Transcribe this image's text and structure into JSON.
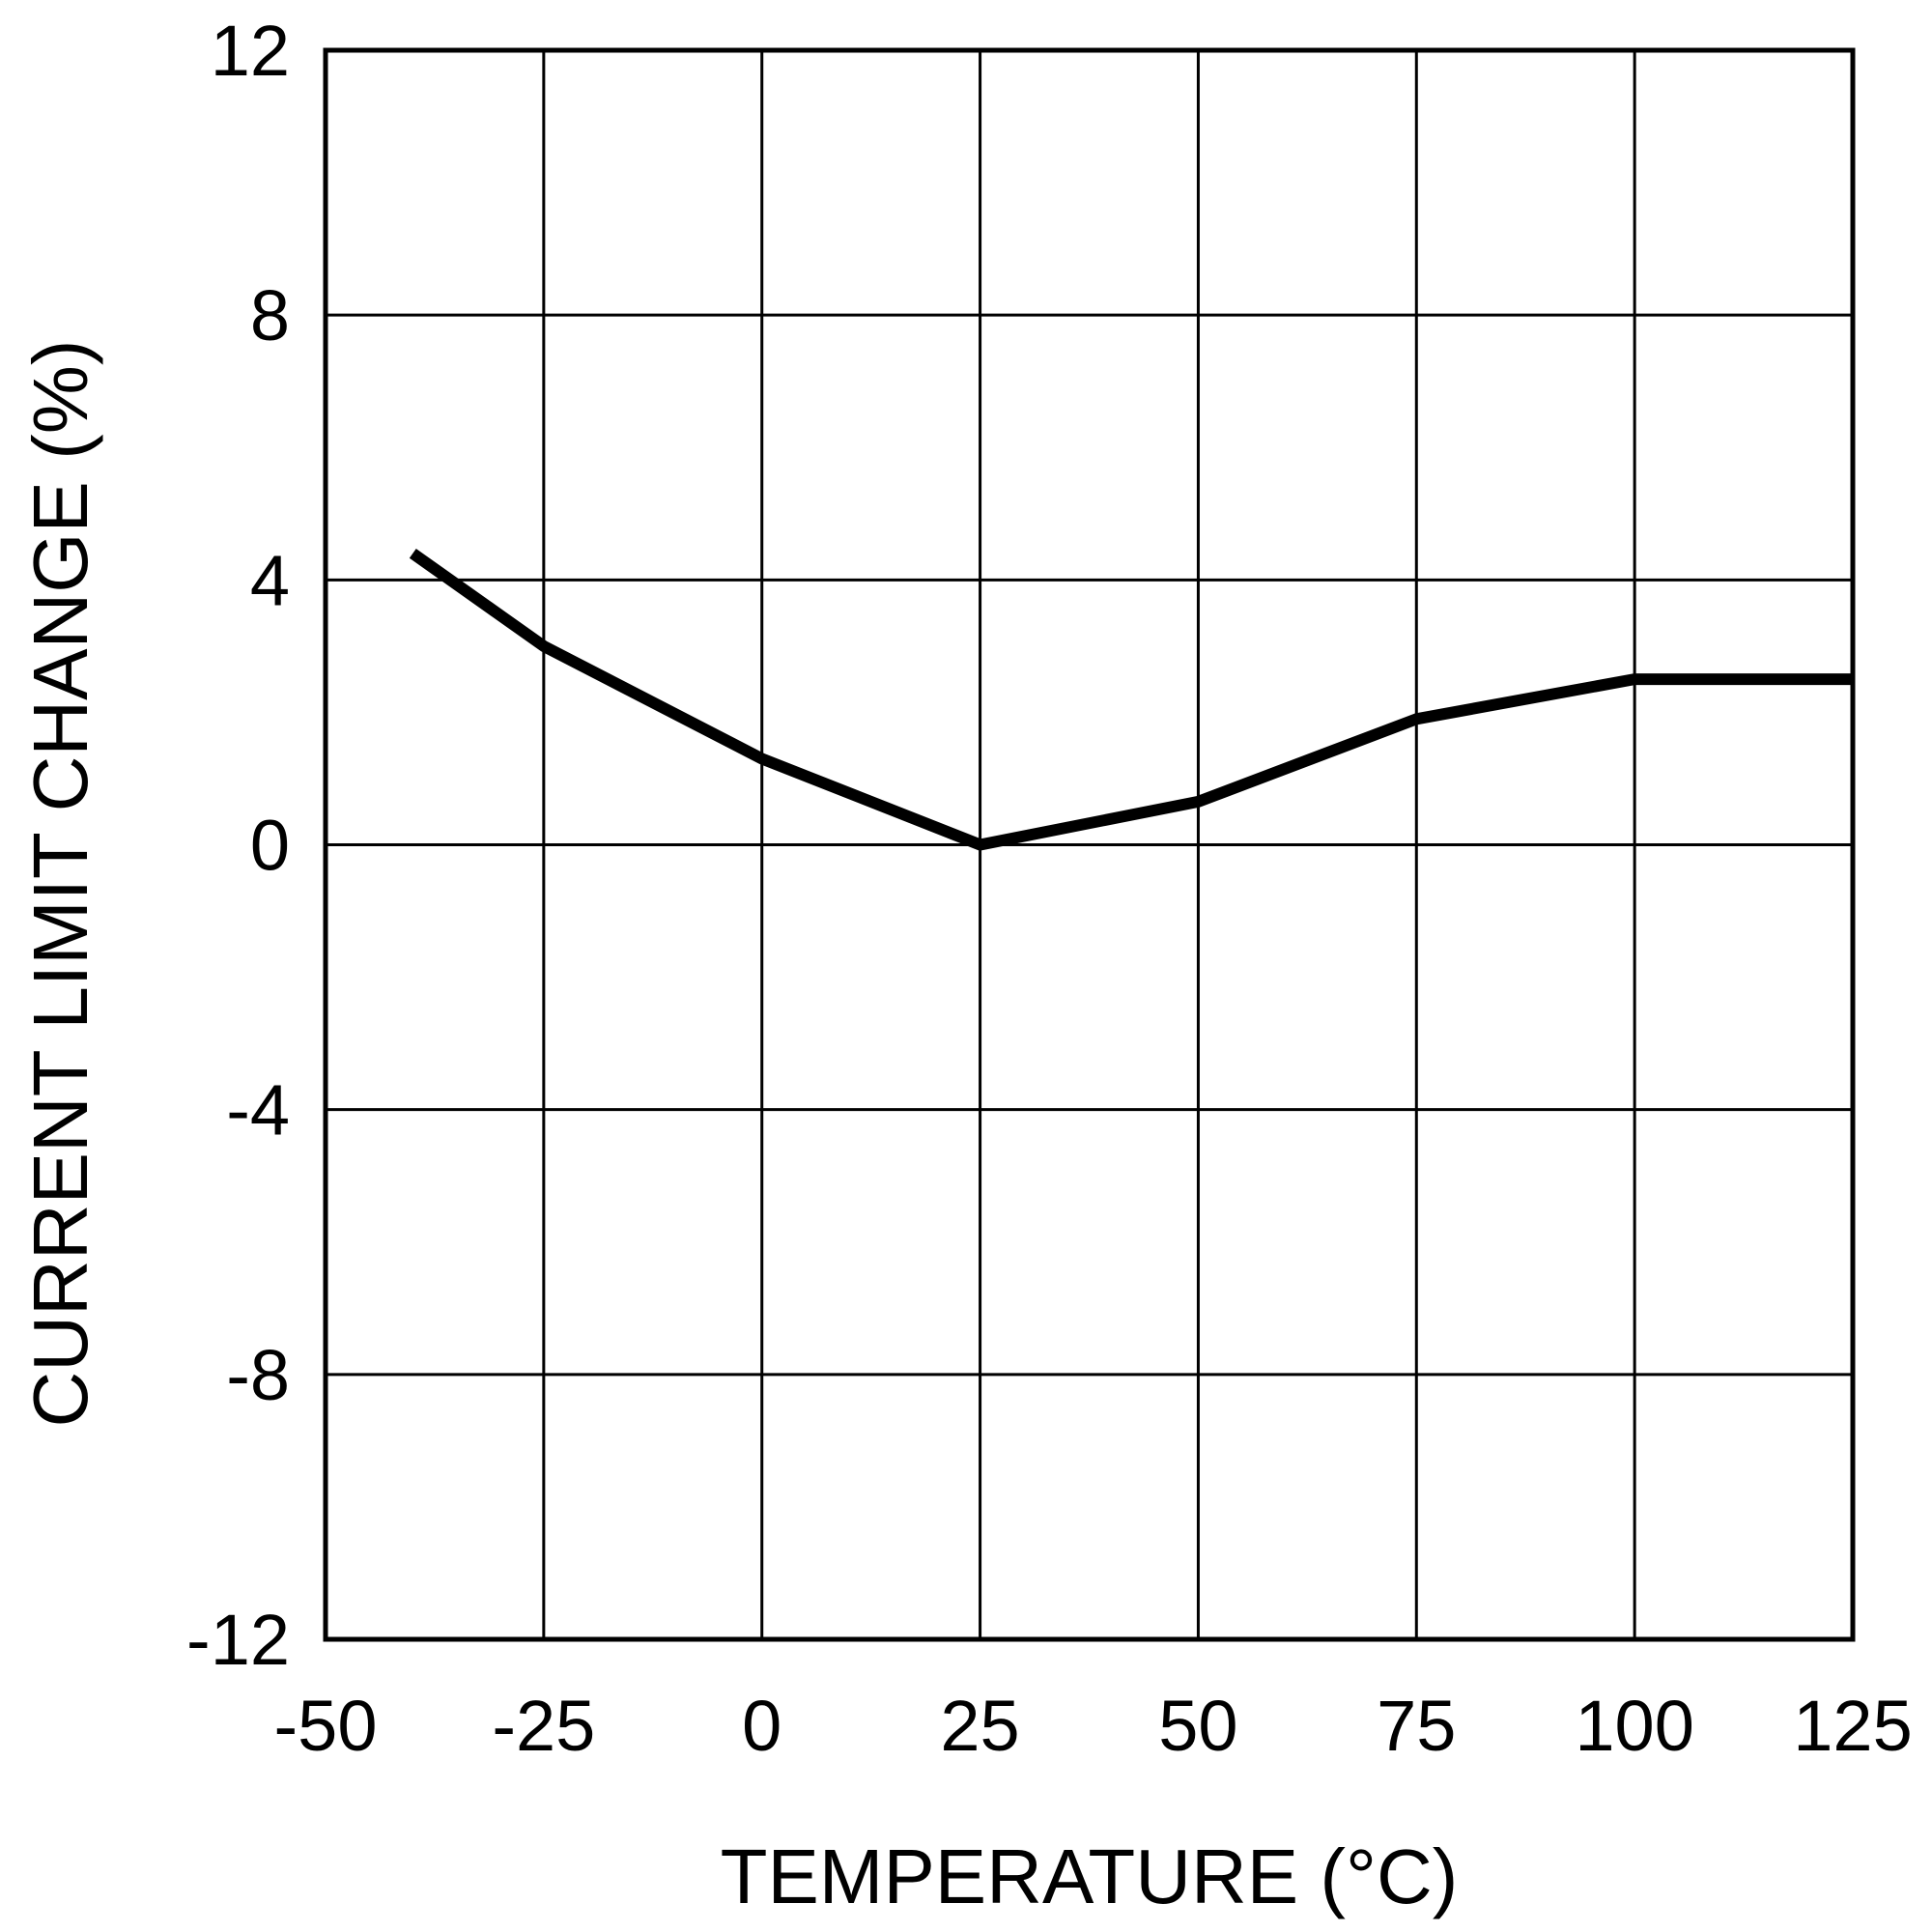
{
  "chart_data": {
    "type": "line",
    "title": "",
    "xlabel": "TEMPERATURE (°C)",
    "ylabel": "CURRENT LIMIT CHANGE (%)",
    "xlim": [
      -50,
      125
    ],
    "ylim": [
      -12,
      12
    ],
    "x_ticks": [
      "-50",
      "-25",
      "0",
      "25",
      "50",
      "75",
      "100",
      "125"
    ],
    "x_tick_values": [
      -50,
      -25,
      0,
      25,
      50,
      75,
      100,
      125
    ],
    "y_ticks": [
      "12",
      "8",
      "4",
      "0",
      "-4",
      "-8",
      "-12"
    ],
    "y_tick_values": [
      12,
      8,
      4,
      0,
      -4,
      -8,
      -12
    ],
    "grid": true,
    "legend": "none",
    "series": [
      {
        "x": [
          -40,
          -25,
          0,
          25,
          50,
          75,
          100,
          125
        ],
        "y": [
          4.4,
          3.0,
          1.3,
          0.0,
          0.65,
          1.9,
          2.5,
          2.5
        ]
      }
    ],
    "colors": {
      "line": "#000000",
      "grid": "#000000",
      "background": "#ffffff"
    }
  }
}
